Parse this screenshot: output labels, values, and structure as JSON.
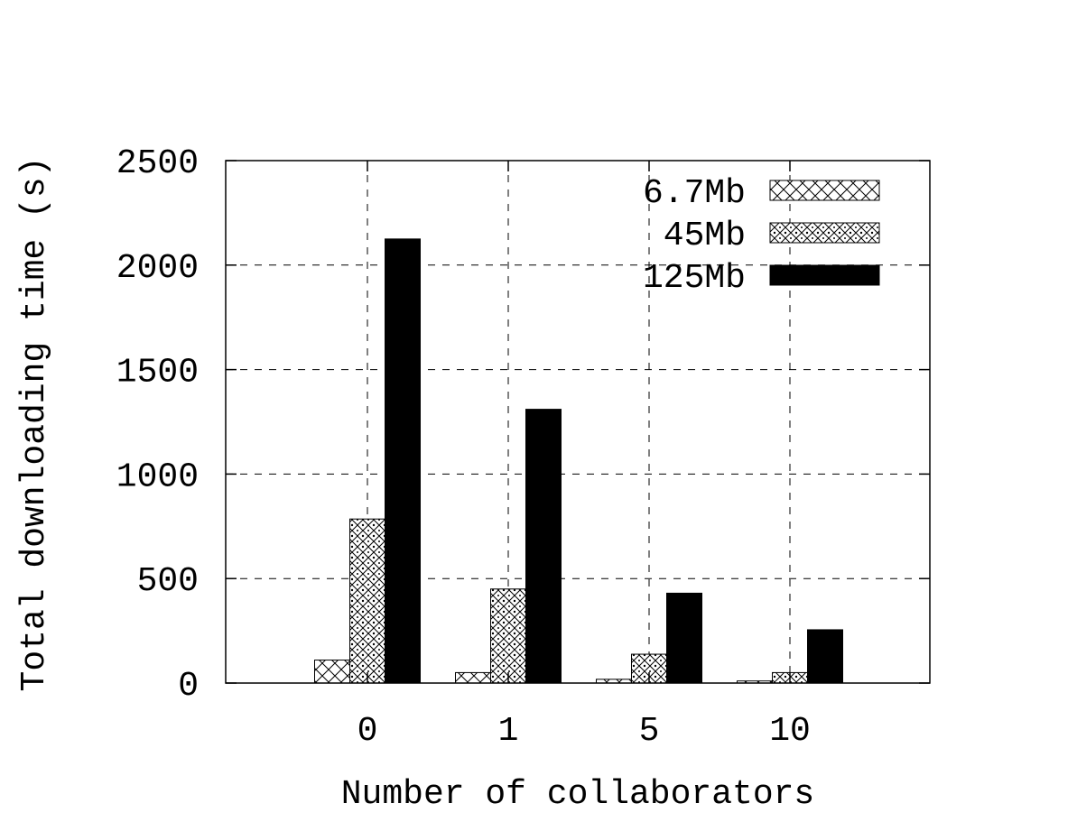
{
  "chart_data": {
    "type": "bar",
    "title": "",
    "xlabel": "Number of collaborators",
    "ylabel": "Total downloading time (s)",
    "categories": [
      "0",
      "1",
      "5",
      "10"
    ],
    "ylim": [
      0,
      2500
    ],
    "yticks": [
      "0",
      "500",
      "1000",
      "1500",
      "2000",
      "2500"
    ],
    "grid": true,
    "legend_position": "top-right",
    "series": [
      {
        "name": "6.7Mb",
        "pattern": "crosshatch",
        "color": "#000000",
        "values": [
          110,
          50,
          18,
          10
        ]
      },
      {
        "name": "45Mb",
        "pattern": "dotted-diamond",
        "color": "#000000",
        "values": [
          785,
          450,
          138,
          50
        ]
      },
      {
        "name": "125Mb",
        "pattern": "solid",
        "color": "#000000",
        "values": [
          2125,
          1310,
          430,
          255
        ]
      }
    ]
  }
}
